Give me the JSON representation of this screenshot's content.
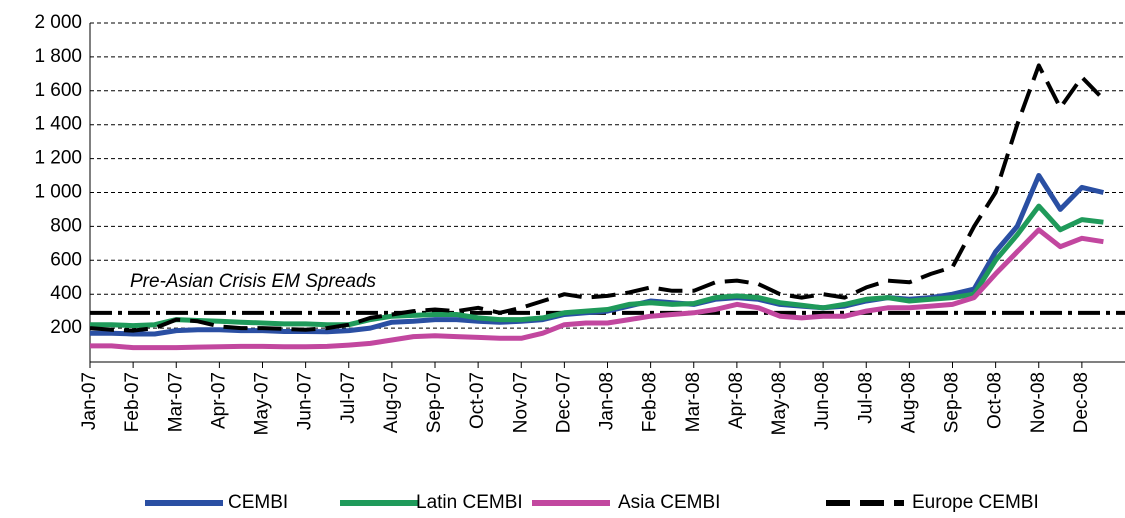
{
  "chart_data": {
    "type": "line",
    "categories": [
      "Jan-07",
      null,
      "Feb-07",
      null,
      "Mar-07",
      null,
      "Apr-07",
      null,
      "May-07",
      null,
      "Jun-07",
      null,
      "Jul-07",
      null,
      "Aug-07",
      null,
      "Sep-07",
      null,
      "Oct-07",
      null,
      "Nov-07",
      null,
      "Dec-07",
      null,
      "Jan-08",
      null,
      "Feb-08",
      null,
      "Mar-08",
      null,
      "Apr-08",
      null,
      "May-08",
      null,
      "Jun-08",
      null,
      "Jul-08",
      null,
      "Aug-08",
      null,
      "Sep-08",
      null,
      "Oct-08",
      null,
      "Nov-08",
      null,
      "Dec-08",
      null
    ],
    "series": [
      {
        "name": "CEMBI",
        "color": "#2a4fa3",
        "dash": "solid",
        "values": [
          170,
          170,
          165,
          165,
          185,
          190,
          190,
          185,
          185,
          180,
          180,
          178,
          185,
          200,
          235,
          240,
          250,
          250,
          240,
          235,
          240,
          250,
          280,
          290,
          300,
          330,
          360,
          350,
          340,
          370,
          380,
          370,
          340,
          330,
          320,
          330,
          360,
          380,
          370,
          380,
          400,
          430,
          650,
          800,
          1100,
          900,
          1030,
          1000
        ]
      },
      {
        "name": "Latin CEMBI",
        "color": "#1f9a5a",
        "dash": "solid",
        "values": [
          220,
          220,
          215,
          220,
          250,
          245,
          240,
          235,
          230,
          225,
          225,
          220,
          220,
          250,
          270,
          275,
          280,
          280,
          260,
          250,
          250,
          260,
          290,
          300,
          310,
          340,
          350,
          340,
          345,
          380,
          390,
          380,
          350,
          335,
          320,
          340,
          370,
          380,
          360,
          370,
          380,
          400,
          600,
          750,
          920,
          780,
          840,
          825
        ]
      },
      {
        "name": "Asia CEMBI",
        "color": "#c2479f",
        "dash": "solid",
        "values": [
          95,
          95,
          85,
          85,
          85,
          88,
          90,
          92,
          92,
          90,
          90,
          92,
          100,
          110,
          130,
          150,
          155,
          150,
          145,
          140,
          140,
          170,
          220,
          230,
          230,
          250,
          270,
          280,
          290,
          310,
          340,
          320,
          270,
          260,
          270,
          270,
          300,
          320,
          320,
          330,
          340,
          380,
          520,
          650,
          780,
          680,
          730,
          710
        ]
      },
      {
        "name": "Europe CEMBI",
        "color": "#000000",
        "dash": "dashed",
        "values": [
          200,
          190,
          185,
          200,
          250,
          240,
          210,
          200,
          200,
          195,
          190,
          200,
          220,
          260,
          280,
          300,
          310,
          300,
          320,
          290,
          320,
          360,
          400,
          380,
          390,
          410,
          440,
          420,
          420,
          470,
          480,
          460,
          400,
          380,
          400,
          380,
          440,
          480,
          470,
          520,
          560,
          800,
          1000,
          1400,
          1750,
          1500,
          1680,
          1550
        ]
      }
    ],
    "reference_line": {
      "value": 290,
      "label": "Pre-Asian Crisis EM Spreads",
      "color": "#000000"
    },
    "ylim": [
      0,
      2000
    ],
    "yticks": [
      200,
      400,
      600,
      800,
      {
        "value": 1000,
        "label": "1 000"
      },
      {
        "value": 1200,
        "label": "1 200"
      },
      {
        "value": 1400,
        "label": "1 400"
      },
      {
        "value": 1600,
        "label": "1 600"
      },
      {
        "value": 1800,
        "label": "1 800"
      },
      {
        "value": 2000,
        "label": "2 000"
      }
    ],
    "grid": true,
    "legend": "bottom"
  }
}
